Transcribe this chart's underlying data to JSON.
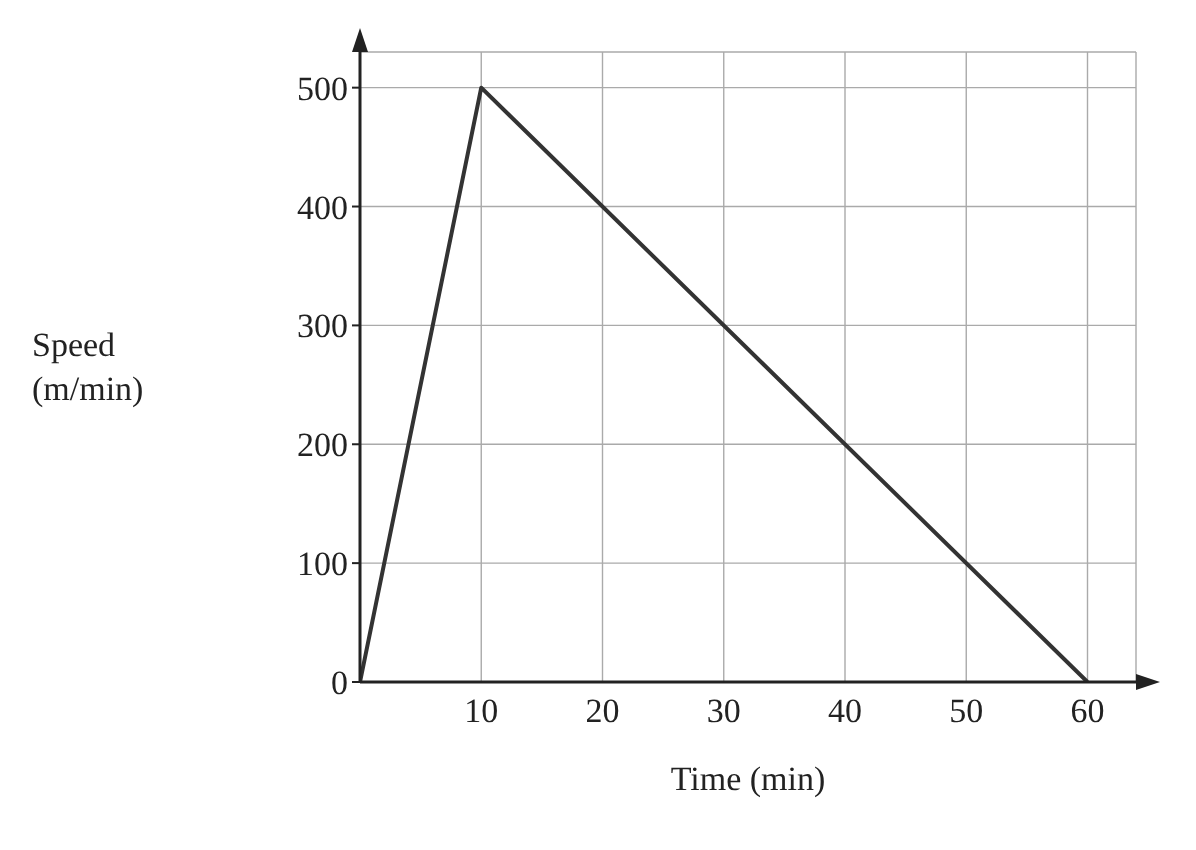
{
  "chart_data": {
    "type": "line",
    "xlabel": "Time (min)",
    "ylabel": "Speed\n(m/min)",
    "x": [
      0,
      10,
      60
    ],
    "series": [
      {
        "color": "#333333",
        "values": [
          0,
          500,
          0
        ]
      }
    ],
    "xlim": [
      0,
      64
    ],
    "xticks": [
      10,
      20,
      30,
      40,
      50,
      60
    ],
    "ylim": [
      0,
      530
    ],
    "yticks": [
      0,
      100,
      200,
      300,
      400,
      500
    ],
    "grid": true,
    "marker": "none",
    "line_style": "solid"
  }
}
